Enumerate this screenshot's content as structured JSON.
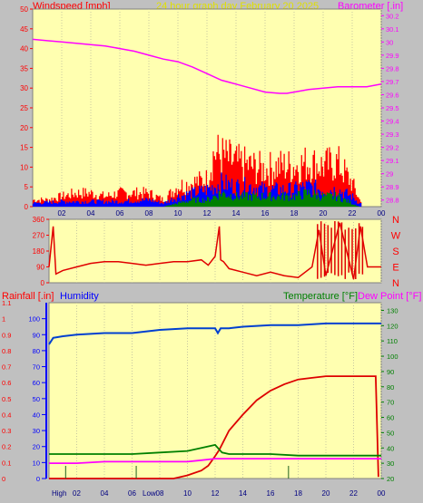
{
  "header": {
    "left_label": "Windspeed [mph]",
    "center_label": "24 hour graph day   February 20 2025",
    "right_label": "Barometer [.in]"
  },
  "panel3_labels": {
    "rain": "Rainfall [.in]",
    "humidity": "Humidity",
    "temperature": "Temperature [°F]",
    "dewpoint": "Dew Point [°F]"
  },
  "bottom_labels": {
    "high": "High",
    "low": "Low"
  },
  "colors": {
    "background": "#C0C0C0",
    "plot_bg": "#FFFFB0",
    "wind_gust": "#FF0000",
    "wind_avg": "#0000FF",
    "wind_low": "#008000",
    "barometer": "#FF00FF",
    "direction": "#E00000",
    "rain": "#DD0000",
    "humidity": "#0040D0",
    "temperature": "#008000",
    "dewpoint": "#FF00FF",
    "axis_left": "#FF0000",
    "axis_right": "#FF00FF"
  },
  "chart_data": [
    {
      "type": "line",
      "title": "24 hour graph day   February 20 2025",
      "x_ticks": [
        "02",
        "04",
        "06",
        "08",
        "10",
        "12",
        "14",
        "16",
        "18",
        "20",
        "22",
        "00"
      ],
      "xlim": [
        0,
        24
      ],
      "left_axis": {
        "label": "Windspeed [mph]",
        "ylim": [
          0,
          50
        ],
        "ticks": [
          "0",
          "5",
          "10",
          "15",
          "20",
          "25",
          "30",
          "35",
          "40",
          "45",
          "50"
        ]
      },
      "right_axis": {
        "label": "Barometer [.in]",
        "ylim": [
          28.75,
          30.25
        ],
        "ticks": [
          "28.8",
          "28.9",
          "29",
          "29.1",
          "29.2",
          "29.3",
          "29.4",
          "29.5",
          "29.6",
          "29.7",
          "29.8",
          "29.9",
          "30",
          "30.1",
          "30.2"
        ]
      },
      "series": [
        {
          "name": "Barometer [.in]",
          "axis": "right",
          "x": [
            0,
            1,
            2,
            3,
            4,
            5,
            6,
            7,
            8,
            9,
            10,
            11,
            12,
            13,
            14,
            15,
            16,
            17,
            17.5,
            18,
            19,
            20,
            21,
            22,
            23,
            24
          ],
          "values": [
            30.02,
            30.01,
            30.0,
            29.99,
            29.98,
            29.97,
            29.95,
            29.93,
            29.9,
            29.87,
            29.85,
            29.81,
            29.76,
            29.71,
            29.68,
            29.65,
            29.62,
            29.61,
            29.61,
            29.62,
            29.64,
            29.65,
            29.66,
            29.66,
            29.66,
            29.68
          ]
        },
        {
          "name": "Wind gust",
          "axis": "left",
          "x": [
            0,
            1,
            2,
            3,
            4,
            5,
            6,
            7,
            8,
            9,
            10,
            11,
            12,
            12.5,
            13,
            14,
            15,
            16,
            17,
            18,
            19,
            20,
            21,
            22,
            22.5,
            23,
            24
          ],
          "values": [
            2,
            2,
            3,
            4,
            4,
            3,
            4,
            4,
            4,
            2,
            6,
            7,
            8,
            16,
            15,
            13,
            12,
            11,
            12,
            12,
            13,
            12,
            13,
            7,
            2,
            3,
            0
          ]
        },
        {
          "name": "Wind average",
          "axis": "left",
          "x": [
            0,
            2,
            4,
            6,
            8,
            9,
            10,
            11,
            12,
            13,
            14,
            15,
            16,
            17,
            18,
            19,
            20,
            21,
            22,
            22.5,
            24
          ],
          "values": [
            1,
            1.5,
            1.5,
            1.5,
            2,
            1,
            3,
            4,
            5,
            7,
            6,
            6,
            5,
            5,
            5,
            6,
            5,
            5,
            3,
            1,
            0
          ]
        },
        {
          "name": "Wind low",
          "axis": "left",
          "x": [
            0,
            2,
            4,
            6,
            8,
            9,
            10,
            11,
            12,
            13,
            14,
            15,
            16,
            17,
            18,
            19,
            20,
            21,
            22,
            22.5,
            24
          ],
          "values": [
            0,
            0,
            0,
            0,
            0,
            0,
            1,
            2,
            2,
            4,
            3,
            3,
            3,
            3,
            3,
            4,
            3,
            3,
            1,
            0,
            0
          ]
        }
      ]
    },
    {
      "type": "line",
      "name": "wind direction",
      "left_axis": {
        "ylim": [
          0,
          360
        ],
        "ticks": [
          "0",
          "90",
          "180",
          "270",
          "360"
        ]
      },
      "right_axis": {
        "ticks": [
          "N",
          "W",
          "S",
          "E",
          "N"
        ]
      },
      "xlim": [
        0,
        24
      ],
      "series": [
        {
          "name": "Direction",
          "x": [
            0,
            0.3,
            0.5,
            1,
            2,
            3,
            4,
            5,
            6,
            7,
            8,
            9,
            10,
            11,
            11.5,
            12,
            12.3,
            12.4,
            12.6,
            13,
            14,
            15,
            16,
            17,
            18,
            19,
            19.5,
            20,
            21,
            22,
            22.5,
            23,
            24
          ],
          "values": [
            90,
            320,
            50,
            70,
            90,
            110,
            120,
            120,
            110,
            100,
            110,
            120,
            120,
            130,
            100,
            150,
            320,
            130,
            120,
            80,
            60,
            40,
            60,
            40,
            30,
            90,
            300,
            40,
            340,
            20,
            320,
            90,
            90
          ]
        }
      ]
    },
    {
      "type": "line",
      "name": "rainfall humidity temperature",
      "left_axis": {
        "label": "Rainfall [.in]",
        "ylim": [
          0,
          1.1
        ],
        "ticks": [
          "0",
          "0.1",
          "0.2",
          "0.3",
          "0.4",
          "0.5",
          "0.6",
          "0.7",
          "0.8",
          "0.9",
          "1",
          "1.1"
        ]
      },
      "humidity_axis": {
        "label": "Humidity",
        "ylim": [
          0,
          100
        ],
        "ticks": [
          "0",
          "10",
          "20",
          "30",
          "40",
          "50",
          "60",
          "70",
          "80",
          "90",
          "100"
        ]
      },
      "right_axis": {
        "label": "Temperature [°F]",
        "ylim": [
          20,
          135
        ],
        "ticks": [
          "20",
          "30",
          "40",
          "50",
          "60",
          "70",
          "80",
          "90",
          "100",
          "110",
          "120",
          "130"
        ]
      },
      "xlim": [
        0,
        24
      ],
      "series": [
        {
          "name": "Humidity",
          "axis": "humidity",
          "x": [
            0,
            0.3,
            1,
            2,
            4,
            6,
            8,
            10,
            11,
            12,
            12.2,
            12.4,
            13,
            14,
            16,
            18,
            20,
            22,
            24
          ],
          "values": [
            84,
            88,
            89,
            90,
            91,
            91,
            93,
            94,
            94,
            94,
            91,
            94,
            94,
            95,
            96,
            96,
            97,
            97,
            97
          ]
        },
        {
          "name": "Rainfall [.in]",
          "axis": "left",
          "x": [
            0,
            8,
            9,
            10,
            11,
            11.5,
            12,
            12.3,
            13,
            14,
            15,
            16,
            17,
            18,
            19,
            20,
            21,
            22,
            23,
            23.6,
            23.8
          ],
          "values": [
            0,
            0,
            0,
            0.02,
            0.05,
            0.08,
            0.14,
            0.18,
            0.3,
            0.4,
            0.49,
            0.55,
            0.59,
            0.62,
            0.63,
            0.64,
            0.64,
            0.64,
            0.64,
            0.64,
            0.01
          ]
        },
        {
          "name": "Temperature [°F]",
          "axis": "right",
          "x": [
            0,
            2,
            4,
            6,
            8,
            10,
            11,
            12,
            12.5,
            13,
            14,
            16,
            18,
            20,
            22,
            24
          ],
          "values": [
            36,
            36,
            36,
            36,
            37,
            38,
            40,
            42,
            37,
            36,
            36,
            36,
            35,
            35,
            35,
            35
          ]
        },
        {
          "name": "Dew Point [°F]",
          "axis": "right",
          "x": [
            0,
            2,
            4,
            6,
            8,
            10,
            11,
            12,
            12.5,
            13,
            14,
            16,
            18,
            20,
            22,
            24
          ],
          "values": [
            30,
            30,
            31,
            31,
            31,
            31,
            32,
            33,
            33,
            33,
            33,
            33,
            33,
            33,
            33,
            33
          ]
        }
      ]
    }
  ]
}
